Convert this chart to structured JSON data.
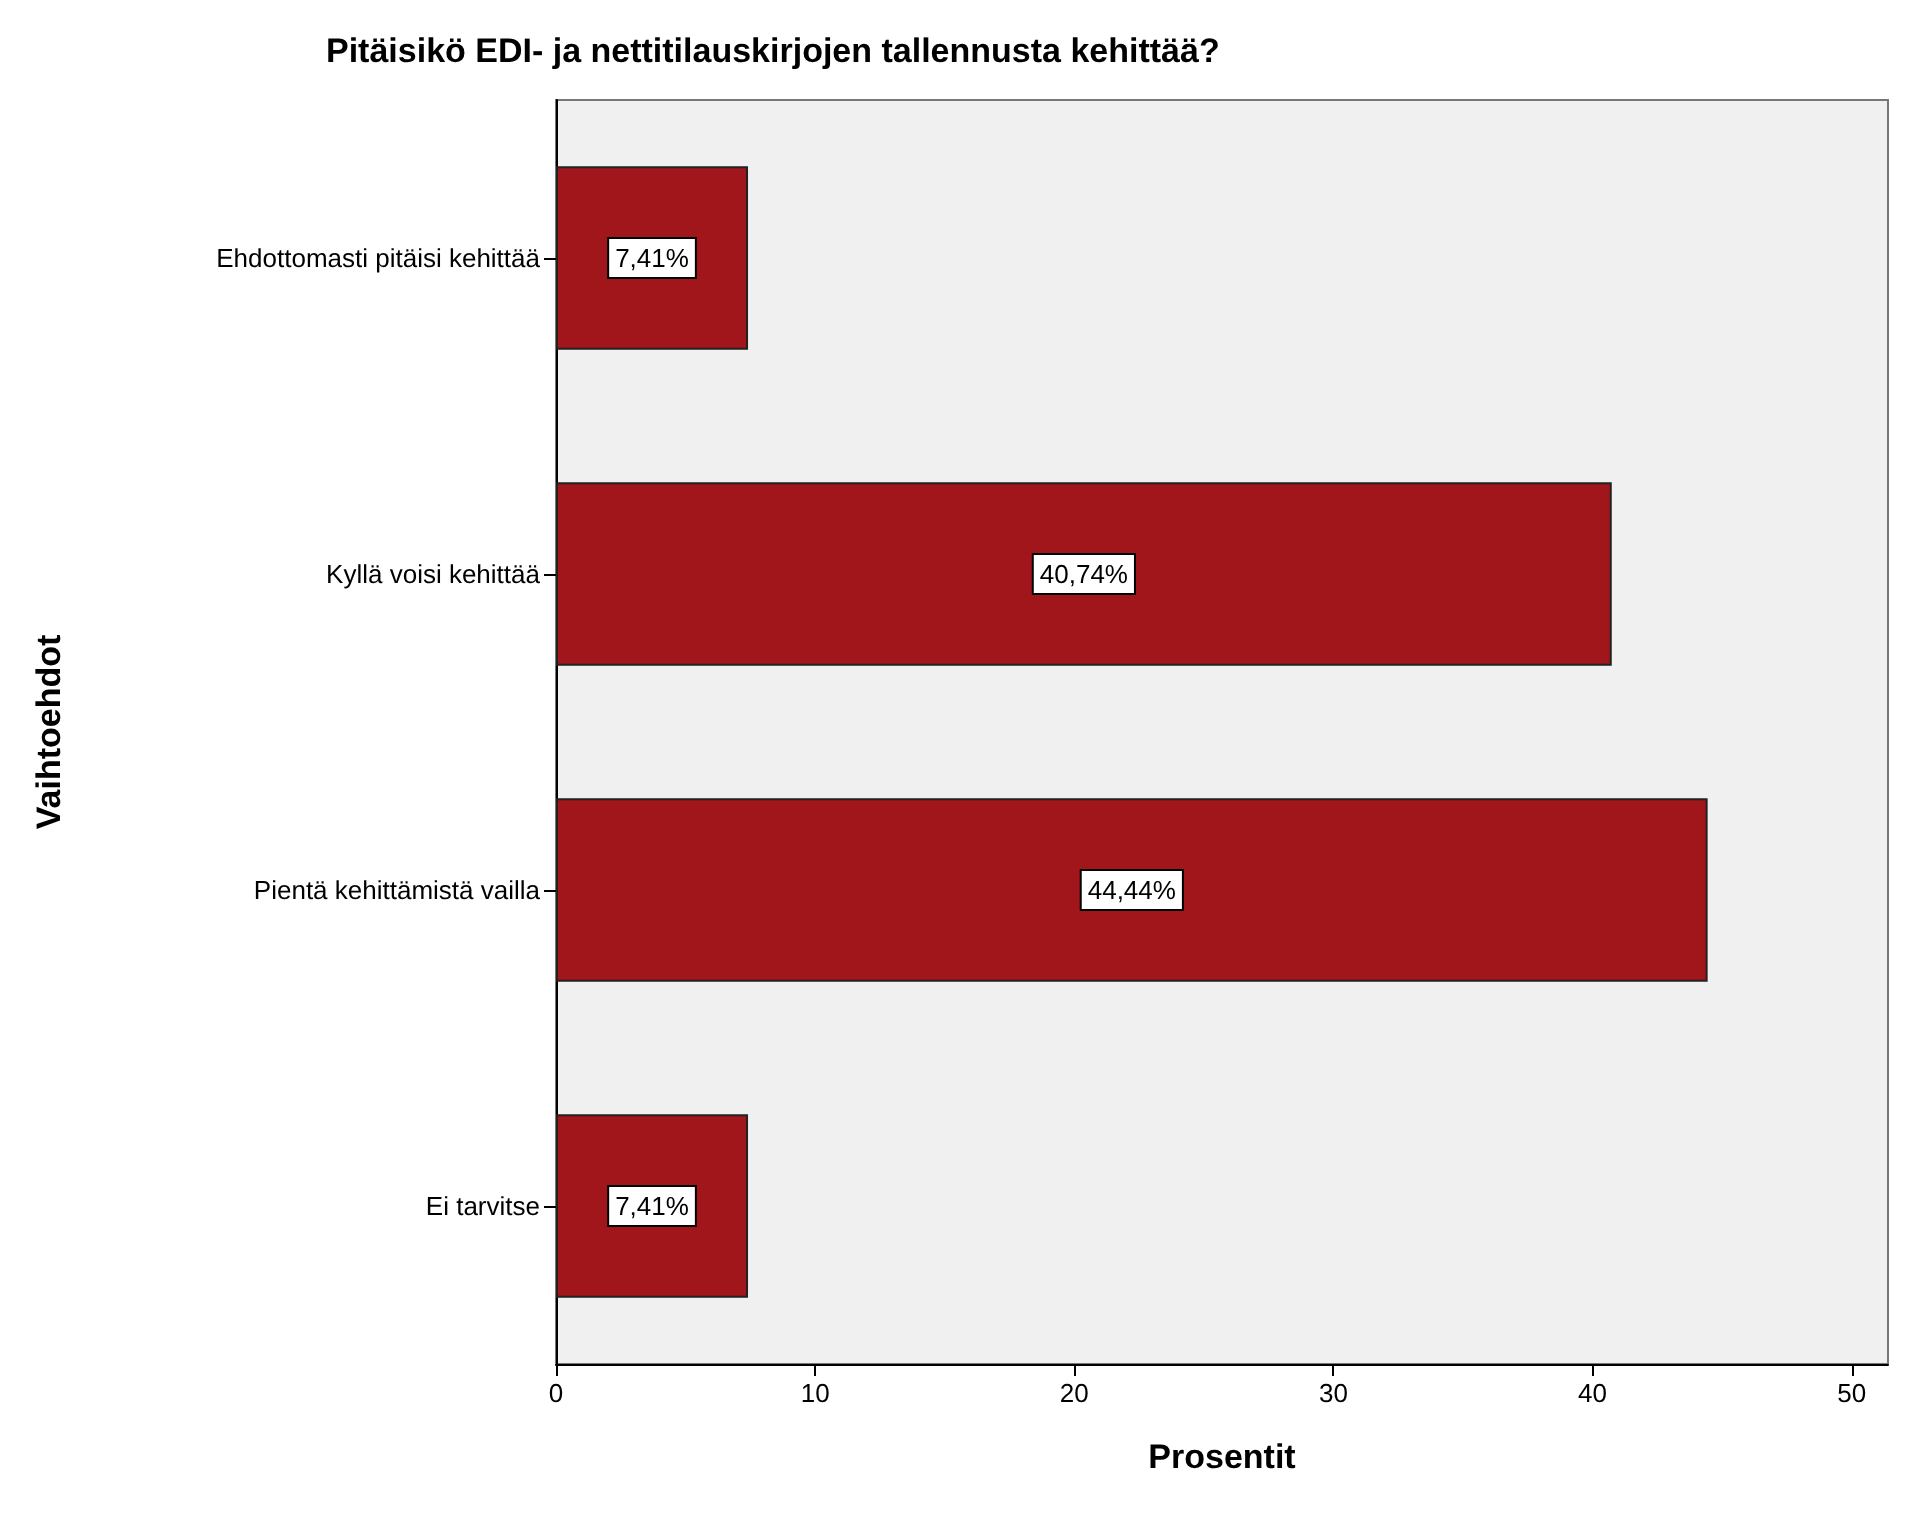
{
  "chart_data": {
    "type": "bar",
    "orientation": "horizontal",
    "title": "Pitäisikö EDI- ja nettitilauskirjojen tallennusta kehittää?",
    "xlabel": "Prosentit",
    "ylabel": "Vaihtoehdot",
    "categories": [
      "Ehdottomasti pitäisi kehittää",
      "Kyllä voisi kehittää",
      "Pientä kehittämistä vailla",
      "Ei tarvitse"
    ],
    "values": [
      7.41,
      40.74,
      44.44,
      7.41
    ],
    "value_labels": [
      "7,41%",
      "40,74%",
      "44,44%",
      "7,41%"
    ],
    "color": "#a0161a",
    "xlim": [
      0,
      51.4
    ],
    "xticks": [
      0,
      10,
      20,
      30,
      40,
      50
    ]
  }
}
